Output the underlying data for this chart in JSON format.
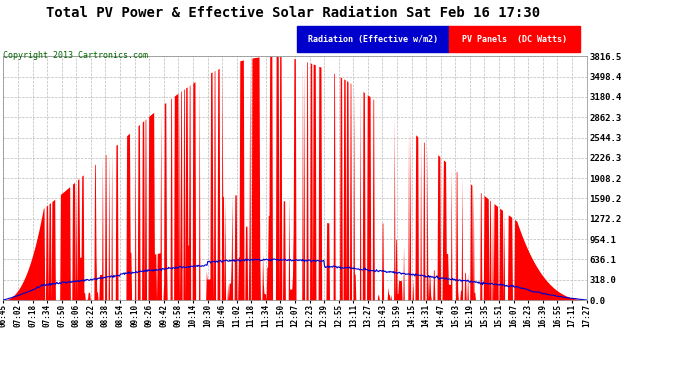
{
  "title": "Total PV Power & Effective Solar Radiation Sat Feb 16 17:30",
  "copyright": "Copyright 2013 Cartronics.com",
  "legend_blue_label": "Radiation (Effective w/m2)",
  "legend_red_label": "PV Panels  (DC Watts)",
  "ymax": 3816.5,
  "ymin": 0.0,
  "yticks": [
    0.0,
    318.0,
    636.1,
    954.1,
    1272.2,
    1590.2,
    1908.2,
    2226.3,
    2544.3,
    2862.3,
    3180.4,
    3498.4,
    3816.5
  ],
  "background_color": "#ffffff",
  "plot_bg_color": "#ffffff",
  "grid_color": "#aaaaaa",
  "red_color": "#ff0000",
  "blue_color": "#0000cc",
  "blue_legend_bg": "#0000cc",
  "red_legend_bg": "#ff0000",
  "xtick_labels": [
    "06:45",
    "07:02",
    "07:18",
    "07:34",
    "07:50",
    "08:06",
    "08:22",
    "08:38",
    "08:54",
    "09:10",
    "09:26",
    "09:42",
    "09:58",
    "10:14",
    "10:30",
    "10:46",
    "11:02",
    "11:18",
    "11:34",
    "11:50",
    "12:07",
    "12:23",
    "12:39",
    "12:55",
    "13:11",
    "13:27",
    "13:43",
    "13:59",
    "14:15",
    "14:31",
    "14:47",
    "15:03",
    "15:19",
    "15:35",
    "15:51",
    "16:07",
    "16:23",
    "16:39",
    "16:55",
    "17:11",
    "17:27"
  ]
}
